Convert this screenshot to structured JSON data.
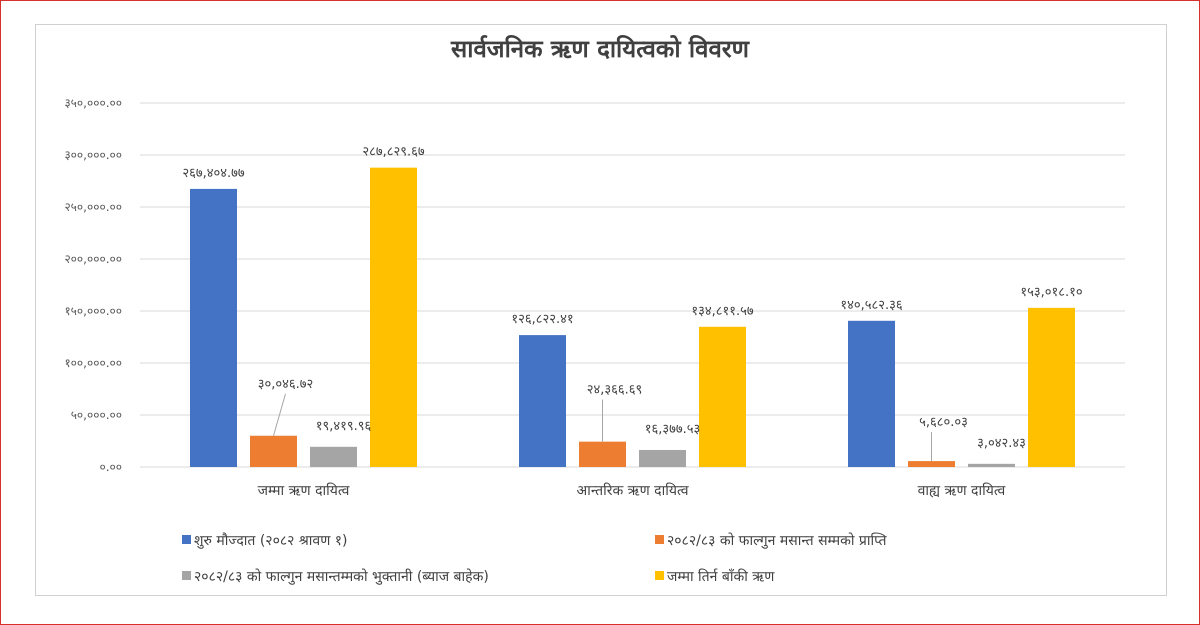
{
  "chart_data": {
    "type": "bar",
    "title": "सार्वजनिक ऋण दायित्वको विवरण",
    "categories": [
      "जम्मा ऋण दायित्व",
      "आन्तरिक ऋण दायित्व",
      "वाह्य ऋण दायित्व"
    ],
    "ylim": [
      0,
      350000
    ],
    "grid": true,
    "legend_position": "bottom",
    "y_ticks": [
      0,
      50000,
      100000,
      150000,
      200000,
      250000,
      300000,
      350000
    ],
    "y_tick_labels": [
      "०.००",
      "५०,०००.००",
      "१००,०००.००",
      "१५०,०००.००",
      "२००,०००.००",
      "२५०,०००.००",
      "३००,०००.००",
      "३५०,०००.००"
    ],
    "series": [
      {
        "name": "शुरु मौज्दात (२०८२ श्रावण १)",
        "color": "#4472c4",
        "values": [
          267404.77,
          126822.41,
          140582.36
        ],
        "labels": [
          "२६७,४०४.७७",
          "१२६,८२२.४१",
          "१४०,५८२.३६"
        ]
      },
      {
        "name": "२०८२/८३ को फाल्गुन मसान्त सम्मको प्राप्ति",
        "color": "#ed7d31",
        "values": [
          30046.72,
          24366.69,
          5680.03
        ],
        "labels": [
          "३०,०४६.७२",
          "२४,३६६.६९",
          "५,६८०.०३"
        ]
      },
      {
        "name": "२०८२/८३ को फाल्गुन मसान्तम्मको भुक्तानी (ब्याज बाहेक)",
        "color": "#a5a5a5",
        "values": [
          19419.96,
          16377.53,
          3042.43
        ],
        "labels": [
          "१९,४१९.९६",
          "१६,३७७.५३",
          "३,०४२.४३"
        ]
      },
      {
        "name": "जम्मा तिर्न बाँकी ऋण",
        "color": "#ffc000",
        "values": [
          287829.67,
          134811.57,
          153018.1
        ],
        "labels": [
          "२८७,८२९.६७",
          "१३४,८११.५७",
          "१५३,०१८.१०"
        ]
      }
    ]
  }
}
